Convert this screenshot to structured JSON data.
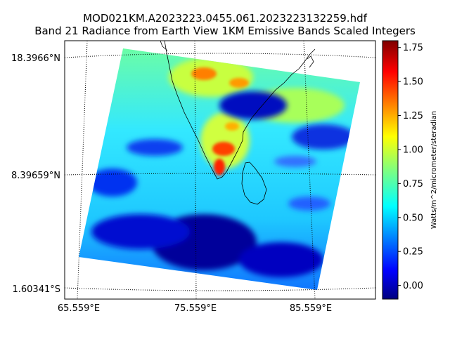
{
  "title": {
    "line1": "MOD021KM.A2023223.0455.061.2023223132259.hdf",
    "line2": "Band 21 Radiance from Earth View 1KM Emissive Bands Scaled Integers"
  },
  "map": {
    "lat_labels": [
      "18.3966°N",
      "8.39659°N",
      "1.60341°S"
    ],
    "lon_labels": [
      "65.559°E",
      "75.559°E",
      "85.559°E"
    ]
  },
  "colorbar": {
    "label": "Watts/m^2/micrometer/steradian",
    "ticks": [
      "0.00",
      "0.25",
      "0.50",
      "0.75",
      "1.00",
      "1.25",
      "1.50",
      "1.75"
    ],
    "tick_values": [
      0,
      0.25,
      0.5,
      0.75,
      1.0,
      1.25,
      1.5,
      1.75
    ],
    "range": [
      -0.1,
      1.8
    ],
    "colormap": "jet"
  },
  "colors": {
    "jet_low": "#00007f",
    "jet_blue": "#0000ff",
    "jet_cyan": "#00ffff",
    "jet_yellow": "#ffff00",
    "jet_red": "#ff0000",
    "jet_high": "#7f0000"
  }
}
